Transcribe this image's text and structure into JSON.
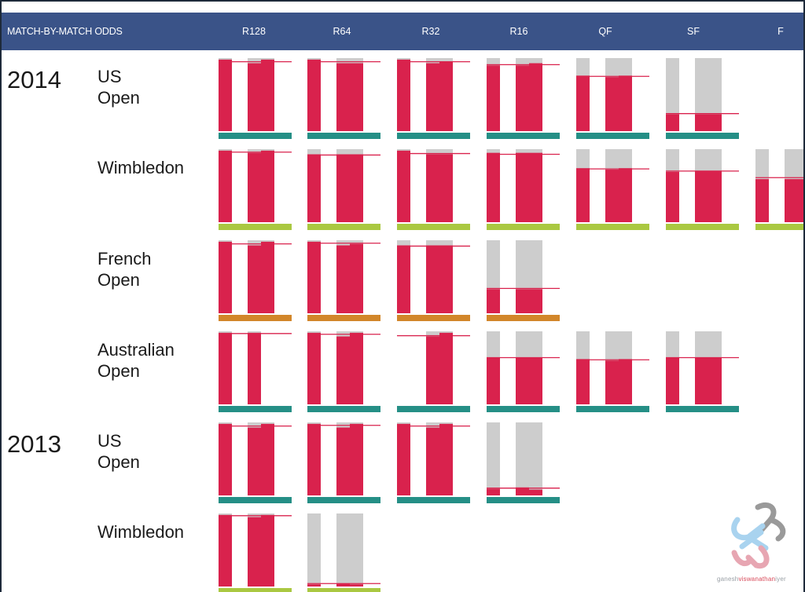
{
  "header": {
    "title": "MATCH-BY-MATCH ODDS",
    "rounds": [
      "R128",
      "R64",
      "R32",
      "R16",
      "QF",
      "SF",
      "F"
    ]
  },
  "colors": {
    "header_bg": "#3a5388",
    "bar": "#d9224d",
    "bar_bg": "#cdcdcd",
    "ref_line": "#d9224d",
    "hard": "#258f86",
    "grass": "#aac841",
    "clay": "#d2862a"
  },
  "watermark": {
    "name_a": "ganesh",
    "name_b": "viswanathan",
    "name_c": "iyer"
  },
  "chart_data": {
    "type": "bar",
    "y_unit": "win probability",
    "ylim": [
      0,
      1
    ],
    "x_categories": [
      "R128",
      "R64",
      "R32",
      "R16",
      "QF",
      "SF",
      "F"
    ],
    "rows": [
      {
        "year": "2014",
        "tournament": "US\nOpen",
        "surface": "hard",
        "rounds": [
          {
            "round": "R128",
            "values": [
              0.98,
              0.93,
              0.98
            ],
            "line": 0.95
          },
          {
            "round": "R64",
            "values": [
              0.98,
              0.93,
              0.93
            ],
            "line": 0.95
          },
          {
            "round": "R32",
            "values": [
              0.98,
              0.93,
              0.95
            ],
            "line": 0.95
          },
          {
            "round": "R16",
            "values": [
              0.9,
              0.9,
              0.93
            ],
            "line": 0.91
          },
          {
            "round": "QF",
            "values": [
              0.76,
              0.74,
              0.76
            ],
            "line": 0.75
          },
          {
            "round": "SF",
            "values": [
              0.23,
              0.23,
              0.23
            ],
            "line": 0.24
          }
        ]
      },
      {
        "year": "",
        "tournament": "Wimbledon",
        "surface": "grass",
        "rounds": [
          {
            "round": "R128",
            "values": [
              0.98,
              0.95,
              0.98
            ],
            "line": 0.96
          },
          {
            "round": "R64",
            "values": [
              0.93,
              0.93,
              0.93
            ],
            "line": 0.92
          },
          {
            "round": "R32",
            "values": [
              0.98,
              0.93,
              0.93
            ],
            "line": 0.94
          },
          {
            "round": "R16",
            "values": [
              0.95,
              0.95,
              0.95
            ],
            "line": 0.93
          },
          {
            "round": "QF",
            "values": [
              0.74,
              0.72,
              0.74
            ],
            "line": 0.73
          },
          {
            "round": "SF",
            "values": [
              0.69,
              0.7,
              0.7
            ],
            "line": 0.7
          },
          {
            "round": "F",
            "values": [
              0.59,
              0.59,
              0.59
            ],
            "line": 0.61
          }
        ]
      },
      {
        "year": "",
        "tournament": "French\nOpen",
        "surface": "clay",
        "rounds": [
          {
            "round": "R128",
            "values": [
              0.98,
              0.93,
              0.98
            ],
            "line": 0.95
          },
          {
            "round": "R64",
            "values": [
              0.98,
              0.93,
              0.95
            ],
            "line": 0.96
          },
          {
            "round": "R32",
            "values": [
              0.93,
              0.93,
              0.93
            ],
            "line": 0.92
          },
          {
            "round": "R16",
            "values": [
              0.33,
              0.33,
              0.33
            ],
            "line": 0.34
          }
        ]
      },
      {
        "year": "",
        "tournament": "Australian\nOpen",
        "surface": "hard",
        "rounds": [
          {
            "round": "R128",
            "values": [
              0.98,
              0.98,
              0
            ],
            "line": 0.97
          },
          {
            "round": "R64",
            "values": [
              0.98,
              0.93,
              0.98
            ],
            "line": 0.96
          },
          {
            "round": "R32",
            "values": [
              0,
              0.93,
              0.98
            ],
            "line": 0.94
          },
          {
            "round": "R16",
            "values": [
              0.64,
              0.64,
              0.64
            ],
            "line": 0.64
          },
          {
            "round": "QF",
            "values": [
              0.62,
              0.6,
              0.62
            ],
            "line": 0.61
          },
          {
            "round": "SF",
            "values": [
              0.64,
              0.64,
              0.64
            ],
            "line": 0.64
          }
        ]
      },
      {
        "year": "2013",
        "tournament": "US\nOpen",
        "surface": "hard",
        "rounds": [
          {
            "round": "R128",
            "values": [
              0.98,
              0.93,
              0.98
            ],
            "line": 0.95
          },
          {
            "round": "R64",
            "values": [
              0.98,
              0.93,
              0.98
            ],
            "line": 0.96
          },
          {
            "round": "R32",
            "values": [
              0.98,
              0.93,
              0.98
            ],
            "line": 0.95
          },
          {
            "round": "R16",
            "values": [
              0.09,
              0.11,
              0.08
            ],
            "line": 0.1
          }
        ]
      },
      {
        "year": "",
        "tournament": "Wimbledon",
        "surface": "grass",
        "rounds": [
          {
            "round": "R128",
            "values": [
              0.98,
              0.95,
              0.98
            ],
            "line": 0.97
          },
          {
            "round": "R64",
            "values": [
              0.03,
              0.04,
              0.03
            ],
            "line": 0.04
          }
        ]
      }
    ]
  }
}
